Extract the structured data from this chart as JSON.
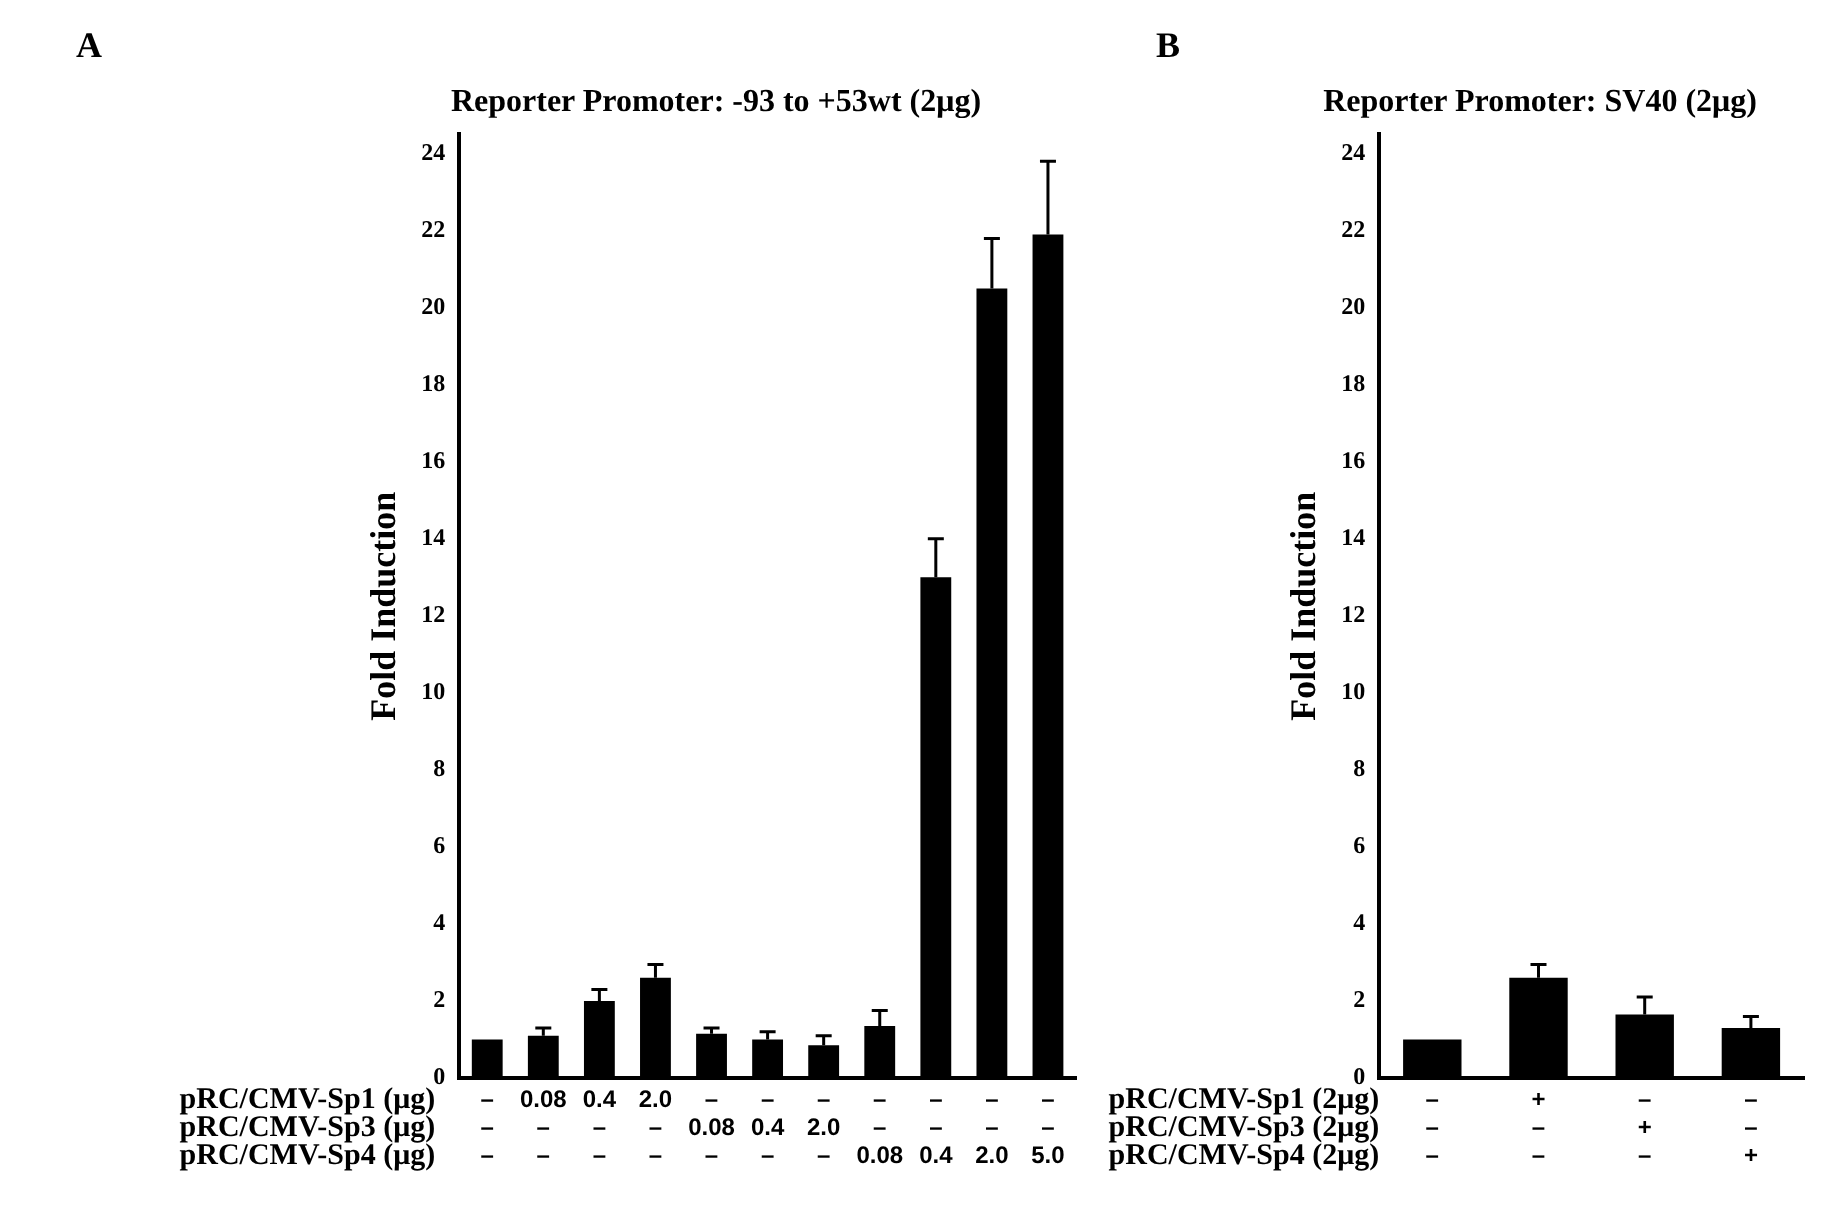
{
  "chart_data": [
    {
      "type": "bar",
      "title": "Reporter Promoter: -93 to +53wt (2μg)",
      "ylabel": "Fold Induction",
      "categories": [
        "–\n–\n–",
        "0.08\n–\n–",
        "0.4\n–\n–",
        "2.0\n–\n–",
        "–\n0.08\n–",
        "–\n0.4\n–",
        "–\n2.0\n–",
        "–\n–\n0.08",
        "–\n–\n0.4",
        "–\n–\n2.0",
        "–\n–\n5.0"
      ],
      "values": [
        1.0,
        1.1,
        2.0,
        2.6,
        1.15,
        1.0,
        0.85,
        1.35,
        13.0,
        20.5,
        21.9
      ],
      "errors": [
        null,
        [
          1.1,
          1.3
        ],
        [
          2.0,
          2.3
        ],
        [
          2.6,
          2.95
        ],
        [
          1.15,
          1.3
        ],
        [
          1.0,
          1.2
        ],
        [
          0.85,
          1.1
        ],
        [
          1.35,
          1.75
        ],
        [
          13.0,
          14.0
        ],
        [
          20.5,
          21.8
        ],
        [
          21.9,
          23.8
        ]
      ],
      "color": "#000000",
      "ylim": [
        0,
        24.5
      ],
      "yticks": [
        0,
        2,
        4,
        6,
        8,
        10,
        12,
        14,
        16,
        18,
        20,
        22,
        24
      ],
      "grid": false,
      "annotations": [
        "A",
        "pRC/CMV-Sp1 (μg)",
        "pRC/CMV-Sp3 (μg)",
        "pRC/CMV-Sp4 (μg)"
      ]
    },
    {
      "type": "bar",
      "title": "Reporter Promoter: SV40 (2μg)",
      "ylabel": "Fold Induction",
      "categories": [
        "–\n–\n–",
        "+\n–\n–",
        "–\n+\n–",
        "–\n–\n+"
      ],
      "values": [
        1.0,
        2.6,
        1.65,
        1.3
      ],
      "errors": [
        null,
        [
          2.6,
          2.95
        ],
        [
          1.65,
          2.1
        ],
        [
          1.3,
          1.6
        ]
      ],
      "color": "#000000",
      "ylim": [
        0,
        24.5
      ],
      "yticks": [
        0,
        2,
        4,
        6,
        8,
        10,
        12,
        14,
        16,
        18,
        20,
        22,
        24
      ],
      "grid": false,
      "annotations": [
        "B",
        "pRC/CMV-Sp1 (2μg)",
        "pRC/CMV-Sp3 (2μg)",
        "pRC/CMV-Sp4 (2μg)"
      ]
    }
  ]
}
